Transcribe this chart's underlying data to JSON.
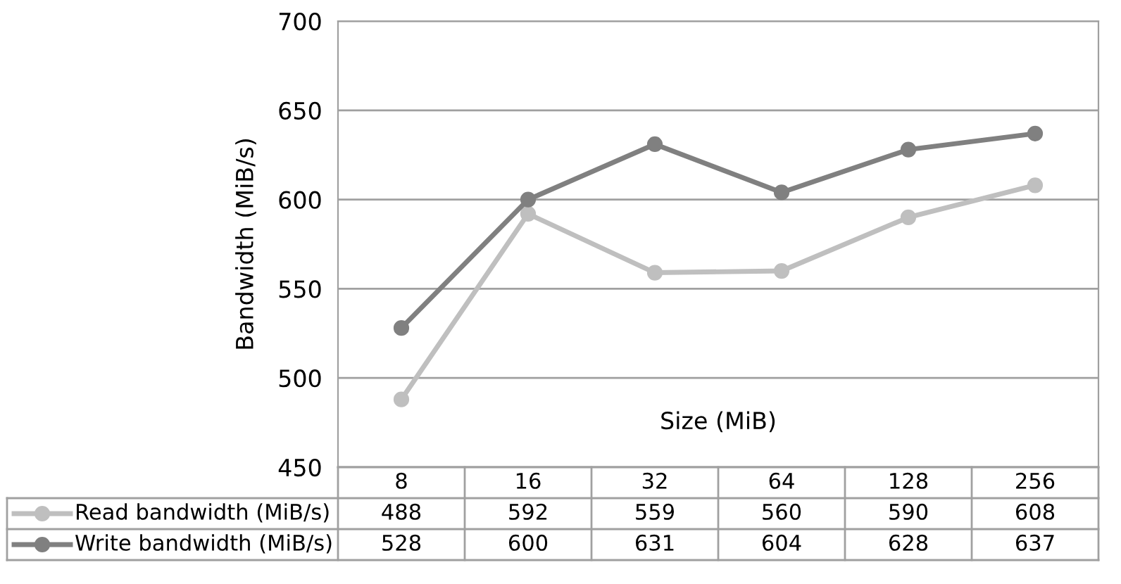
{
  "chart_data": {
    "type": "line",
    "xlabel": "Size (MiB)",
    "ylabel": "Bandwidth (MiB/s)",
    "categories": [
      "8",
      "16",
      "32",
      "64",
      "128",
      "256"
    ],
    "series": [
      {
        "name": "Read bandwidth (MiB/s)",
        "color": "#bfbfbf",
        "values": [
          488,
          592,
          559,
          560,
          590,
          608
        ]
      },
      {
        "name": "Write bandwidth (MiB/s)",
        "color": "#808080",
        "values": [
          528,
          600,
          631,
          604,
          628,
          637
        ]
      }
    ],
    "ylim": [
      450,
      700
    ],
    "yticks": [
      450,
      500,
      550,
      600,
      650,
      700
    ],
    "grid": "y",
    "marker": "circle",
    "line_style": "solid",
    "data_labels": true,
    "legend": "bottom left"
  }
}
